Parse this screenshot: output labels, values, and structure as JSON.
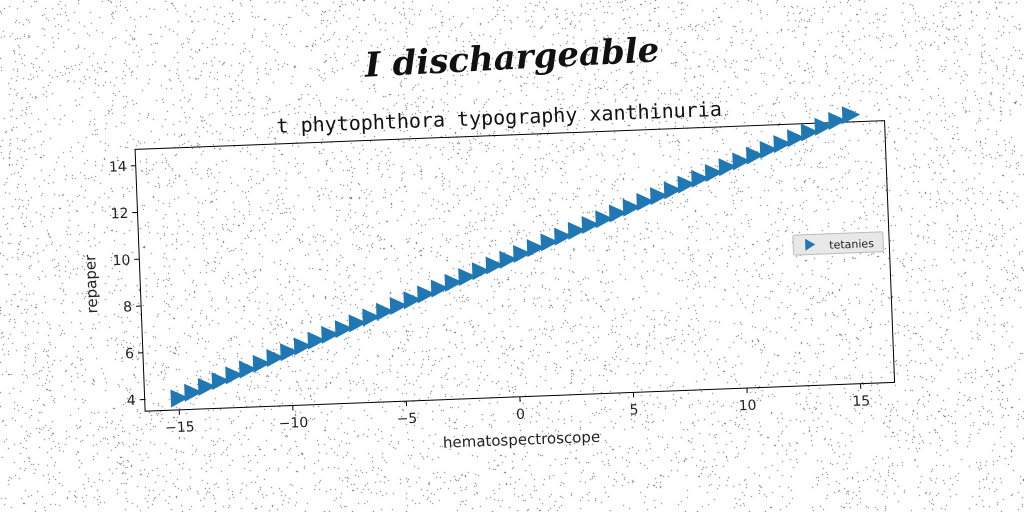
{
  "suptitle": "I dischargeable",
  "chart_data": {
    "type": "scatter",
    "title": "t phytophthora typography xanthinuria",
    "xlabel": "hematospectroscope",
    "ylabel": "repaper",
    "xlim": [
      -16.5,
      16.5
    ],
    "ylim": [
      3.5,
      14.7
    ],
    "xticks": [
      -15,
      -10,
      -5,
      0,
      5,
      10,
      15
    ],
    "xtick_labels": [
      "−15",
      "−10",
      "−5",
      "0",
      "5",
      "10",
      "15"
    ],
    "yticks": [
      4,
      6,
      8,
      10,
      12,
      14
    ],
    "ytick_labels": [
      "4",
      "6",
      "8",
      "10",
      "12",
      "14"
    ],
    "grid": false,
    "legend_position": "center-right",
    "series": [
      {
        "name": "tetanies",
        "marker": "triangle-right",
        "color": "#1f77b4",
        "x_start": -15,
        "x_end": 15,
        "count": 50,
        "y_start": 4,
        "y_end": 15
      }
    ]
  }
}
